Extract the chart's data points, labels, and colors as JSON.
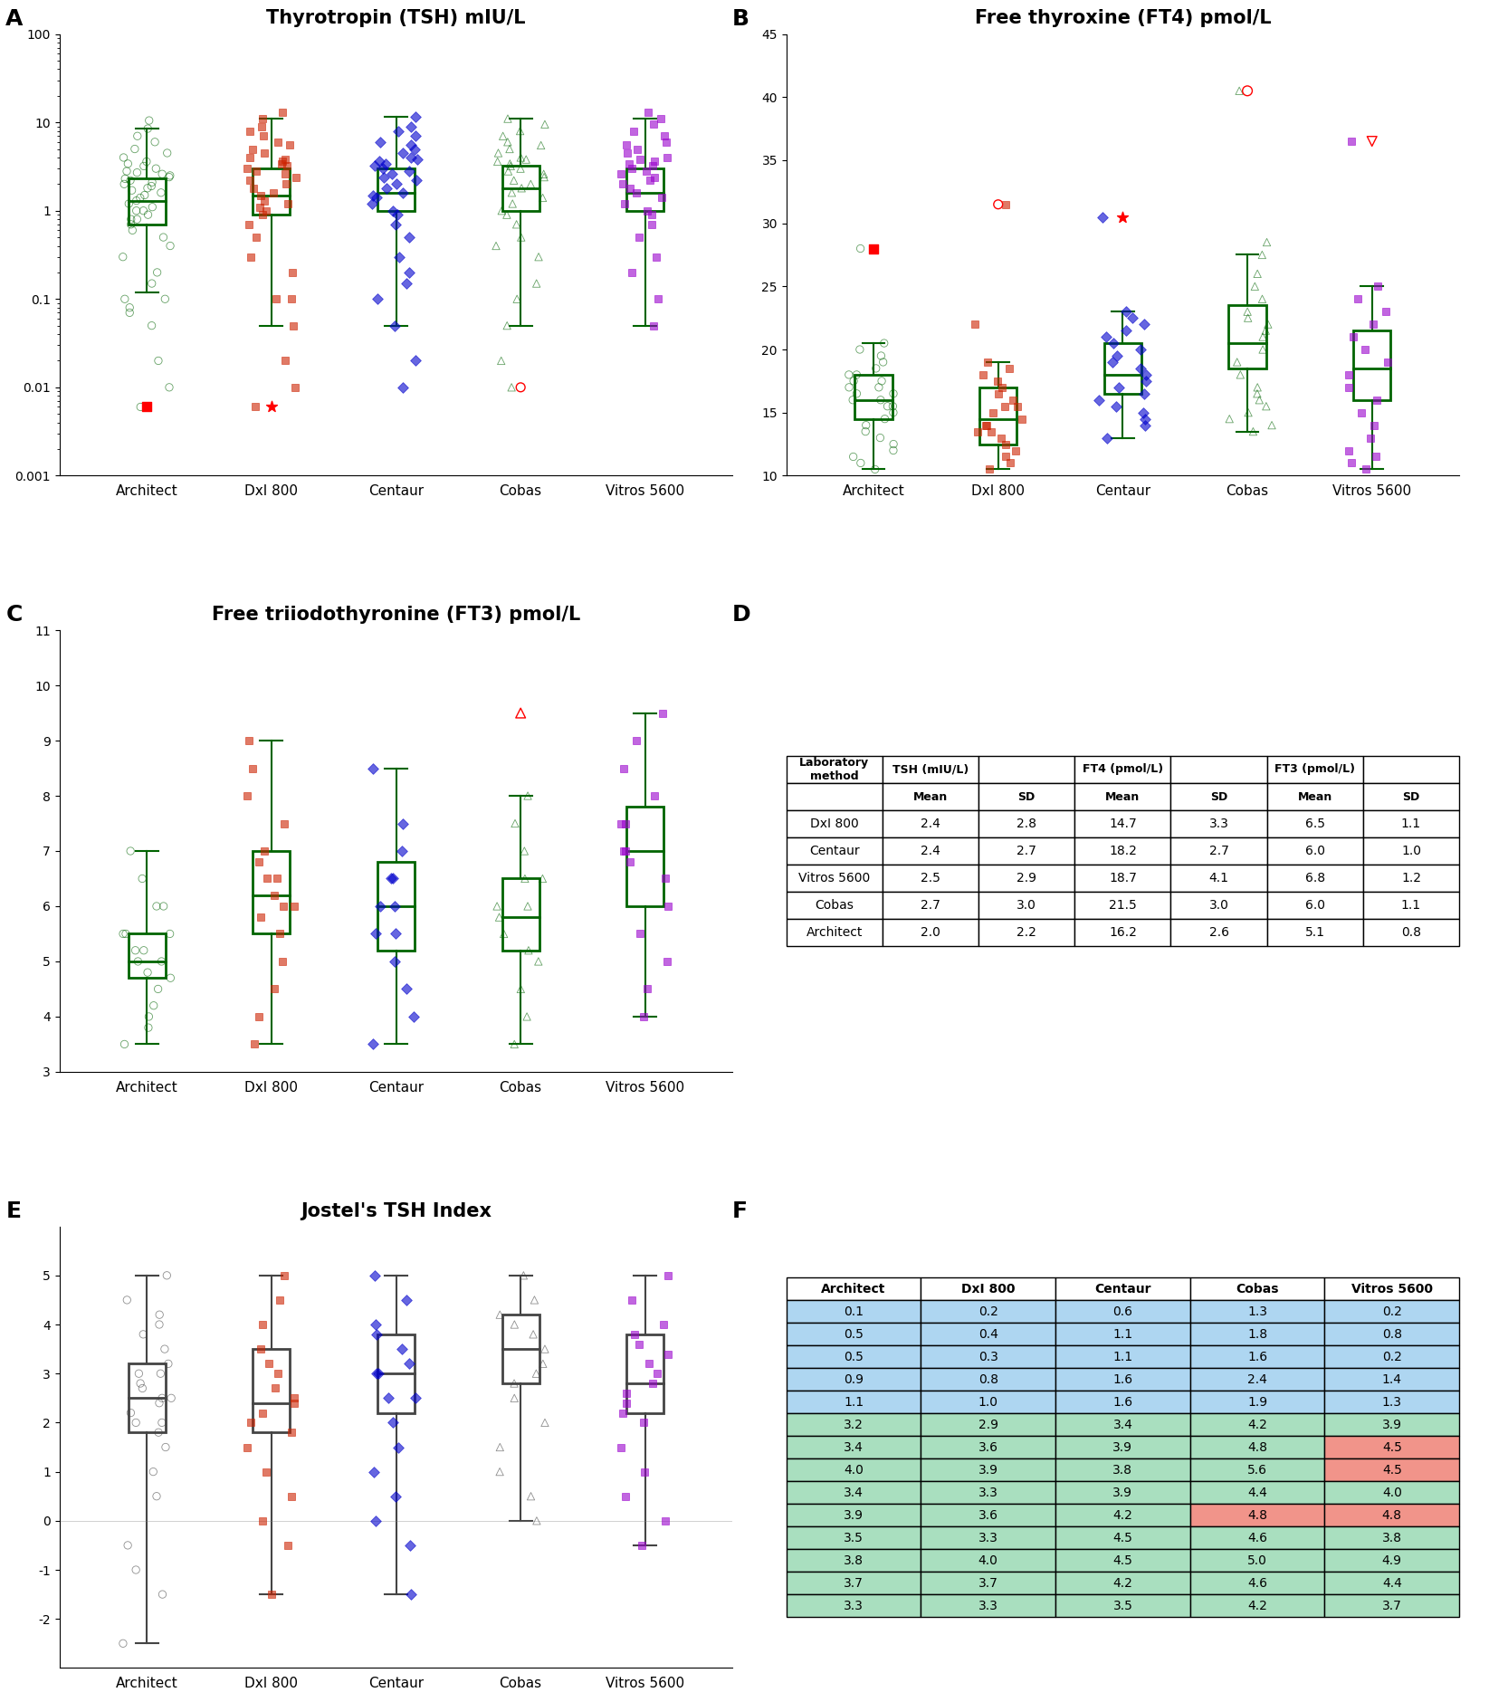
{
  "panel_A_title": "Thyrotropin (TSH) mIU/L",
  "panel_B_title": "Free thyroxine (FT4) pmol/L",
  "panel_C_title": "Free triiodothyronine (FT3) pmol/L",
  "panel_E_title": "Jostel's TSH Index",
  "categories": [
    "Architect",
    "DxI 800",
    "Centaur",
    "Cobas",
    "Vitros 5600"
  ],
  "colors": [
    "#FF8C00",
    "#CC2200",
    "#0000CC",
    "#006400",
    "#9900CC"
  ],
  "box_color": "#006400",
  "markers": [
    "o",
    "s",
    "D",
    "^",
    "s"
  ],
  "marker_facecolors": [
    "none",
    "#CC2200",
    "#0000CC",
    "none",
    "#9900CC"
  ],
  "tsh_data": {
    "Architect": [
      0.006,
      0.01,
      0.02,
      0.05,
      0.07,
      0.08,
      0.1,
      0.1,
      0.15,
      0.2,
      0.3,
      0.4,
      0.5,
      0.6,
      0.7,
      0.8,
      0.8,
      0.9,
      1.0,
      1.0,
      1.1,
      1.2,
      1.3,
      1.4,
      1.5,
      1.6,
      1.7,
      1.8,
      1.9,
      2.0,
      2.1,
      2.2,
      2.3,
      2.4,
      2.5,
      2.6,
      2.7,
      2.8,
      3.0,
      3.2,
      3.4,
      3.6,
      4.0,
      4.5,
      5.0,
      6.0,
      7.0,
      8.5,
      10.5
    ],
    "DxI 800": [
      0.006,
      0.01,
      0.02,
      0.05,
      0.1,
      0.1,
      0.2,
      0.3,
      0.5,
      0.7,
      0.9,
      1.0,
      1.1,
      1.2,
      1.3,
      1.5,
      1.6,
      1.8,
      2.0,
      2.2,
      2.4,
      2.6,
      2.8,
      3.0,
      3.2,
      3.4,
      3.6,
      3.8,
      4.0,
      4.5,
      5.0,
      5.5,
      6.0,
      7.0,
      8.0,
      9.0,
      11.0,
      13.0
    ],
    "Centaur": [
      0.01,
      0.02,
      0.05,
      0.1,
      0.15,
      0.2,
      0.3,
      0.5,
      0.7,
      0.9,
      1.0,
      1.2,
      1.4,
      1.5,
      1.6,
      1.8,
      2.0,
      2.2,
      2.4,
      2.6,
      2.8,
      3.0,
      3.2,
      3.4,
      3.6,
      3.8,
      4.0,
      4.5,
      5.0,
      5.5,
      6.0,
      7.0,
      8.0,
      9.0,
      11.5
    ],
    "Cobas": [
      0.01,
      0.02,
      0.05,
      0.1,
      0.15,
      0.3,
      0.4,
      0.5,
      0.7,
      0.9,
      1.0,
      1.2,
      1.4,
      1.6,
      1.8,
      2.0,
      2.2,
      2.4,
      2.6,
      2.8,
      3.0,
      3.2,
      3.4,
      3.6,
      3.8,
      4.0,
      4.5,
      5.0,
      5.5,
      6.0,
      7.0,
      8.0,
      9.5,
      11.0
    ],
    "Vitros 5600": [
      0.05,
      0.1,
      0.2,
      0.3,
      0.5,
      0.7,
      0.9,
      1.0,
      1.2,
      1.4,
      1.6,
      1.8,
      2.0,
      2.2,
      2.4,
      2.6,
      2.8,
      3.0,
      3.2,
      3.4,
      3.6,
      3.8,
      4.0,
      4.5,
      5.0,
      5.5,
      6.0,
      7.0,
      8.0,
      9.5,
      11.0,
      13.0
    ]
  },
  "tsh_box": {
    "Architect": {
      "q1": 0.7,
      "median": 1.3,
      "q3": 2.3,
      "whislo": 0.12,
      "whishi": 8.5
    },
    "DxI 800": {
      "q1": 0.9,
      "median": 1.5,
      "q3": 3.0,
      "whislo": 0.05,
      "whishi": 11.0
    },
    "Centaur": {
      "q1": 1.0,
      "median": 1.6,
      "q3": 3.0,
      "whislo": 0.05,
      "whishi": 11.5
    },
    "Cobas": {
      "q1": 1.0,
      "median": 1.8,
      "q3": 3.2,
      "whislo": 0.05,
      "whishi": 11.0
    },
    "Vitros 5600": {
      "q1": 1.0,
      "median": 1.6,
      "q3": 3.0,
      "whislo": 0.05,
      "whishi": 11.0
    }
  },
  "ft4_data": {
    "Architect": [
      10.5,
      11.0,
      11.5,
      12.0,
      12.5,
      13.0,
      13.5,
      14.0,
      14.5,
      15.0,
      15.5,
      15.5,
      16.0,
      16.0,
      16.5,
      16.5,
      17.0,
      17.0,
      17.5,
      17.5,
      18.0,
      18.0,
      18.5,
      19.0,
      19.5,
      20.0,
      20.5,
      28.0
    ],
    "DxI 800": [
      10.5,
      11.0,
      11.5,
      12.0,
      12.5,
      13.0,
      13.5,
      13.5,
      14.0,
      14.0,
      14.5,
      15.0,
      15.5,
      15.5,
      16.0,
      16.5,
      17.0,
      17.5,
      18.0,
      18.5,
      19.0,
      22.0,
      31.5
    ],
    "Centaur": [
      13.0,
      14.0,
      14.5,
      15.0,
      15.5,
      16.0,
      16.5,
      17.0,
      17.5,
      18.0,
      18.5,
      19.0,
      19.5,
      20.0,
      20.5,
      21.0,
      21.5,
      22.0,
      22.5,
      23.0,
      30.5
    ],
    "Cobas": [
      13.5,
      14.0,
      14.5,
      15.0,
      15.5,
      16.0,
      16.5,
      17.0,
      18.0,
      19.0,
      20.0,
      21.0,
      21.5,
      22.0,
      22.5,
      23.0,
      24.0,
      25.0,
      26.0,
      27.5,
      28.5,
      40.5
    ],
    "Vitros 5600": [
      10.5,
      11.0,
      11.5,
      12.0,
      13.0,
      14.0,
      15.0,
      16.0,
      17.0,
      18.0,
      19.0,
      20.0,
      21.0,
      22.0,
      23.0,
      24.0,
      25.0,
      36.5
    ]
  },
  "ft4_box": {
    "Architect": {
      "q1": 14.5,
      "median": 16.0,
      "q3": 18.0,
      "whislo": 10.5,
      "whishi": 20.5
    },
    "DxI 800": {
      "q1": 12.5,
      "median": 14.5,
      "q3": 17.0,
      "whislo": 10.5,
      "whishi": 19.0
    },
    "Centaur": {
      "q1": 16.5,
      "median": 18.0,
      "q3": 20.5,
      "whislo": 13.0,
      "whishi": 23.0
    },
    "Cobas": {
      "q1": 18.5,
      "median": 20.5,
      "q3": 23.5,
      "whislo": 13.5,
      "whishi": 27.5
    },
    "Vitros 5600": {
      "q1": 16.0,
      "median": 18.5,
      "q3": 21.5,
      "whislo": 10.5,
      "whishi": 25.0
    }
  },
  "ft3_data": {
    "Architect": [
      3.5,
      3.8,
      4.0,
      4.2,
      4.5,
      4.7,
      4.8,
      5.0,
      5.0,
      5.2,
      5.2,
      5.5,
      5.5,
      5.5,
      6.0,
      6.0,
      6.5,
      7.0
    ],
    "DxI 800": [
      3.5,
      4.0,
      4.5,
      5.0,
      5.5,
      5.8,
      6.0,
      6.0,
      6.2,
      6.5,
      6.5,
      6.8,
      7.0,
      7.5,
      8.0,
      8.5,
      9.0
    ],
    "Centaur": [
      3.5,
      4.0,
      4.5,
      5.0,
      5.5,
      5.5,
      6.0,
      6.0,
      6.5,
      6.5,
      7.0,
      7.5,
      8.5
    ],
    "Cobas": [
      3.5,
      4.0,
      4.5,
      5.0,
      5.2,
      5.5,
      5.8,
      6.0,
      6.0,
      6.5,
      6.5,
      7.0,
      7.5,
      8.0
    ],
    "Vitros 5600": [
      4.0,
      4.5,
      5.0,
      5.5,
      6.0,
      6.5,
      6.8,
      7.0,
      7.0,
      7.5,
      7.5,
      8.0,
      8.5,
      9.0,
      9.5
    ]
  },
  "ft3_box": {
    "Architect": {
      "q1": 4.7,
      "median": 5.0,
      "q3": 5.5,
      "whislo": 3.5,
      "whishi": 7.0
    },
    "DxI 800": {
      "q1": 5.5,
      "median": 6.2,
      "q3": 7.0,
      "whislo": 3.5,
      "whishi": 9.0
    },
    "Centaur": {
      "q1": 5.2,
      "median": 6.0,
      "q3": 6.8,
      "whislo": 3.5,
      "whishi": 8.5
    },
    "Cobas": {
      "q1": 5.2,
      "median": 5.8,
      "q3": 6.5,
      "whislo": 3.5,
      "whishi": 8.0
    },
    "Vitros 5600": {
      "q1": 6.0,
      "median": 7.0,
      "q3": 7.8,
      "whislo": 4.0,
      "whishi": 9.5
    }
  },
  "jostel_data": {
    "Architect": [
      -2.5,
      -1.5,
      -1.0,
      -0.5,
      0.5,
      1.0,
      1.5,
      1.8,
      2.0,
      2.0,
      2.2,
      2.4,
      2.5,
      2.5,
      2.7,
      2.8,
      3.0,
      3.0,
      3.2,
      3.5,
      3.8,
      4.0,
      4.2,
      4.5,
      5.0
    ],
    "DxI 800": [
      -1.5,
      -0.5,
      0.0,
      0.5,
      1.0,
      1.5,
      1.8,
      2.0,
      2.2,
      2.4,
      2.5,
      2.7,
      3.0,
      3.2,
      3.5,
      4.0,
      4.5,
      5.0
    ],
    "Centaur": [
      -1.5,
      -0.5,
      0.0,
      0.5,
      1.0,
      1.5,
      2.0,
      2.5,
      2.5,
      3.0,
      3.0,
      3.2,
      3.5,
      3.8,
      4.0,
      4.5,
      5.0
    ],
    "Cobas": [
      0.0,
      0.5,
      1.0,
      1.5,
      2.0,
      2.5,
      2.8,
      3.0,
      3.2,
      3.5,
      3.8,
      4.0,
      4.2,
      4.5,
      5.0
    ],
    "Vitros 5600": [
      -0.5,
      0.0,
      0.5,
      1.0,
      1.5,
      2.0,
      2.2,
      2.4,
      2.6,
      2.8,
      3.0,
      3.2,
      3.4,
      3.6,
      3.8,
      4.0,
      4.5,
      5.0
    ]
  },
  "jostel_box": {
    "Architect": {
      "q1": 1.8,
      "median": 2.5,
      "q3": 3.2,
      "whislo": -2.5,
      "whishi": 5.0
    },
    "DxI 800": {
      "q1": 1.8,
      "median": 2.4,
      "q3": 3.5,
      "whislo": -1.5,
      "whishi": 5.0
    },
    "Centaur": {
      "q1": 2.2,
      "median": 3.0,
      "q3": 3.8,
      "whislo": -1.5,
      "whishi": 5.0
    },
    "Cobas": {
      "q1": 2.8,
      "median": 3.5,
      "q3": 4.2,
      "whislo": 0.0,
      "whishi": 5.0
    },
    "Vitros 5600": {
      "q1": 2.2,
      "median": 2.8,
      "q3": 3.8,
      "whislo": -0.5,
      "whishi": 5.0
    }
  },
  "table_D": {
    "headers": [
      "Laboratory\nmethod",
      "TSH (mIU/L)",
      "",
      "FT4 (pmol/L)",
      "",
      "FT3 (pmol/L)",
      ""
    ],
    "subheaders": [
      "",
      "Mean",
      "SD",
      "Mean",
      "SD",
      "Mean",
      "SD"
    ],
    "rows": [
      [
        "DxI 800",
        "2.4",
        "2.8",
        "14.7",
        "3.3",
        "6.5",
        "1.1"
      ],
      [
        "Centaur",
        "2.4",
        "2.7",
        "18.2",
        "2.7",
        "6.0",
        "1.0"
      ],
      [
        "Vitros 5600",
        "2.5",
        "2.9",
        "18.7",
        "4.1",
        "6.8",
        "1.2"
      ],
      [
        "Cobas",
        "2.7",
        "3.0",
        "21.5",
        "3.0",
        "6.0",
        "1.1"
      ],
      [
        "Architect",
        "2.0",
        "2.2",
        "16.2",
        "2.6",
        "5.1",
        "0.8"
      ]
    ]
  },
  "table_F": {
    "headers": [
      "Architect",
      "DxI 800",
      "Centaur",
      "Cobas",
      "Vitros 5600"
    ],
    "rows": [
      [
        "0.1",
        "0.2",
        "0.6",
        "1.3",
        "0.2"
      ],
      [
        "0.5",
        "0.4",
        "1.1",
        "1.8",
        "0.8"
      ],
      [
        "0.5",
        "0.3",
        "1.1",
        "1.6",
        "0.2"
      ],
      [
        "0.9",
        "0.8",
        "1.6",
        "2.4",
        "1.4"
      ],
      [
        "1.1",
        "1.0",
        "1.6",
        "1.9",
        "1.3"
      ],
      [
        "3.2",
        "2.9",
        "3.4",
        "4.2",
        "3.9"
      ],
      [
        "3.4",
        "3.6",
        "3.9",
        "4.8",
        "4.5"
      ],
      [
        "4.0",
        "3.9",
        "3.8",
        "5.6",
        "4.5"
      ],
      [
        "3.4",
        "3.3",
        "3.9",
        "4.4",
        "4.0"
      ],
      [
        "3.9",
        "3.6",
        "4.2",
        "4.8",
        "4.8"
      ],
      [
        "3.5",
        "3.3",
        "4.5",
        "4.6",
        "3.8"
      ],
      [
        "3.8",
        "4.0",
        "4.5",
        "5.0",
        "4.9"
      ],
      [
        "3.7",
        "3.7",
        "4.2",
        "4.6",
        "4.4"
      ],
      [
        "3.3",
        "3.3",
        "3.5",
        "4.2",
        "3.7"
      ]
    ],
    "row_colors": [
      [
        "blue",
        "blue",
        "blue",
        "blue",
        "blue"
      ],
      [
        "blue",
        "blue",
        "blue",
        "blue",
        "blue"
      ],
      [
        "blue",
        "blue",
        "blue",
        "blue",
        "blue"
      ],
      [
        "blue",
        "blue",
        "blue",
        "blue",
        "blue"
      ],
      [
        "blue",
        "blue",
        "blue",
        "blue",
        "blue"
      ],
      [
        "green",
        "green",
        "green",
        "green",
        "green"
      ],
      [
        "green",
        "green",
        "green",
        "green",
        "red"
      ],
      [
        "green",
        "green",
        "green",
        "green",
        "red"
      ],
      [
        "green",
        "green",
        "green",
        "green",
        "green"
      ],
      [
        "green",
        "green",
        "green",
        "red",
        "red"
      ],
      [
        "green",
        "green",
        "green",
        "green",
        "green"
      ],
      [
        "green",
        "green",
        "green",
        "green",
        "green"
      ],
      [
        "green",
        "green",
        "green",
        "green",
        "green"
      ],
      [
        "green",
        "green",
        "green",
        "green",
        "green"
      ]
    ]
  }
}
